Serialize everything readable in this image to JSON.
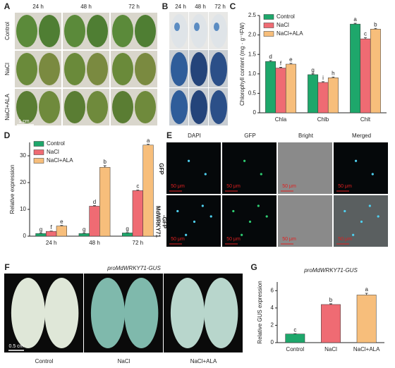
{
  "panels": {
    "A": {
      "label": "A",
      "columns": [
        "24 h",
        "48 h",
        "72 h"
      ],
      "rows": [
        "Control",
        "NaCl",
        "NaCl+ALA"
      ],
      "scale": "1 cm"
    },
    "B": {
      "label": "B",
      "columns": [
        "24 h",
        "48 h",
        "72 h"
      ]
    },
    "E": {
      "label": "E",
      "columns": [
        "DAPI",
        "GFP",
        "Bright",
        "Merged"
      ],
      "rows": [
        [
          "GFP"
        ],
        [
          "MdWRKY71",
          "-GFP"
        ]
      ],
      "scale": "50 μm"
    },
    "F": {
      "label": "F",
      "title": "proMdWRKY71-GUS",
      "columns": [
        "Control",
        "NaCl",
        "NaCl+ALA"
      ],
      "scale": "0.5 cm"
    }
  },
  "chart_data": [
    {
      "type": "bar",
      "label": "C",
      "ylabel": "Chlorophyll content (mg · g⁻¹FW)",
      "categories": [
        "Chla",
        "Chlb",
        "Chlt"
      ],
      "ylim": [
        0,
        2.5
      ],
      "yticks": [
        0,
        0.5,
        {
          "value": 1,
          "label": "1.0"
        },
        1.5,
        {
          "value": 2,
          "label": "2.0"
        },
        2.5
      ],
      "legend": "upper left",
      "series": [
        {
          "name": "Control",
          "color": "#1ea76b",
          "values": [
            1.32,
            0.98,
            2.28
          ],
          "errors": [
            0.02,
            0.02,
            0.02
          ],
          "letters": [
            "d",
            "g",
            "a"
          ]
        },
        {
          "name": "NaCl",
          "color": "#ef6b73",
          "values": [
            1.15,
            0.78,
            1.9
          ],
          "errors": [
            0.02,
            0.02,
            0.03
          ],
          "letters": [
            "f",
            "i",
            "c"
          ]
        },
        {
          "name": "NaCl+ALA",
          "color": "#f7be7b",
          "values": [
            1.25,
            0.9,
            2.15
          ],
          "errors": [
            0.02,
            0.02,
            0.02
          ],
          "letters": [
            "e",
            "h",
            "b"
          ]
        }
      ]
    },
    {
      "type": "bar",
      "label": "D",
      "ylabel": "Relative expression",
      "categories": [
        "24 h",
        "48 h",
        "72 h"
      ],
      "ylim": [
        0,
        35
      ],
      "yticks": [
        0,
        10,
        20,
        30
      ],
      "legend": "upper left",
      "series": [
        {
          "name": "Control",
          "color": "#1ea76b",
          "values": [
            1,
            1,
            1.2
          ],
          "errors": [
            0.1,
            0.1,
            0.1
          ],
          "letters": [
            "g",
            "g",
            "g"
          ]
        },
        {
          "name": "NaCl",
          "color": "#ef6b73",
          "values": [
            1.8,
            11.2,
            17
          ],
          "errors": [
            0.1,
            0.2,
            0.2
          ],
          "letters": [
            "f",
            "d",
            "c"
          ]
        },
        {
          "name": "NaCl+ALA",
          "color": "#f7be7b",
          "values": [
            3.8,
            25.7,
            34
          ],
          "errors": [
            0.2,
            0.6,
            0.3
          ],
          "letters": [
            "e",
            "b",
            "a"
          ]
        }
      ]
    },
    {
      "type": "bar",
      "label": "G",
      "title": "proMdWRKY71-GUS",
      "ylabel": "Relative GUS expression",
      "categories": [
        "Control",
        "NaCl",
        "NaCl+ALA"
      ],
      "ylim": [
        0,
        7
      ],
      "yticks": [
        0,
        2,
        4,
        6
      ],
      "values": [
        1,
        4.4,
        5.5
      ],
      "errors": [
        0.03,
        0.08,
        0.2
      ],
      "letters": [
        "c",
        "b",
        "a"
      ],
      "colors": [
        "#1ea76b",
        "#ef6b73",
        "#f7be7b"
      ]
    }
  ]
}
